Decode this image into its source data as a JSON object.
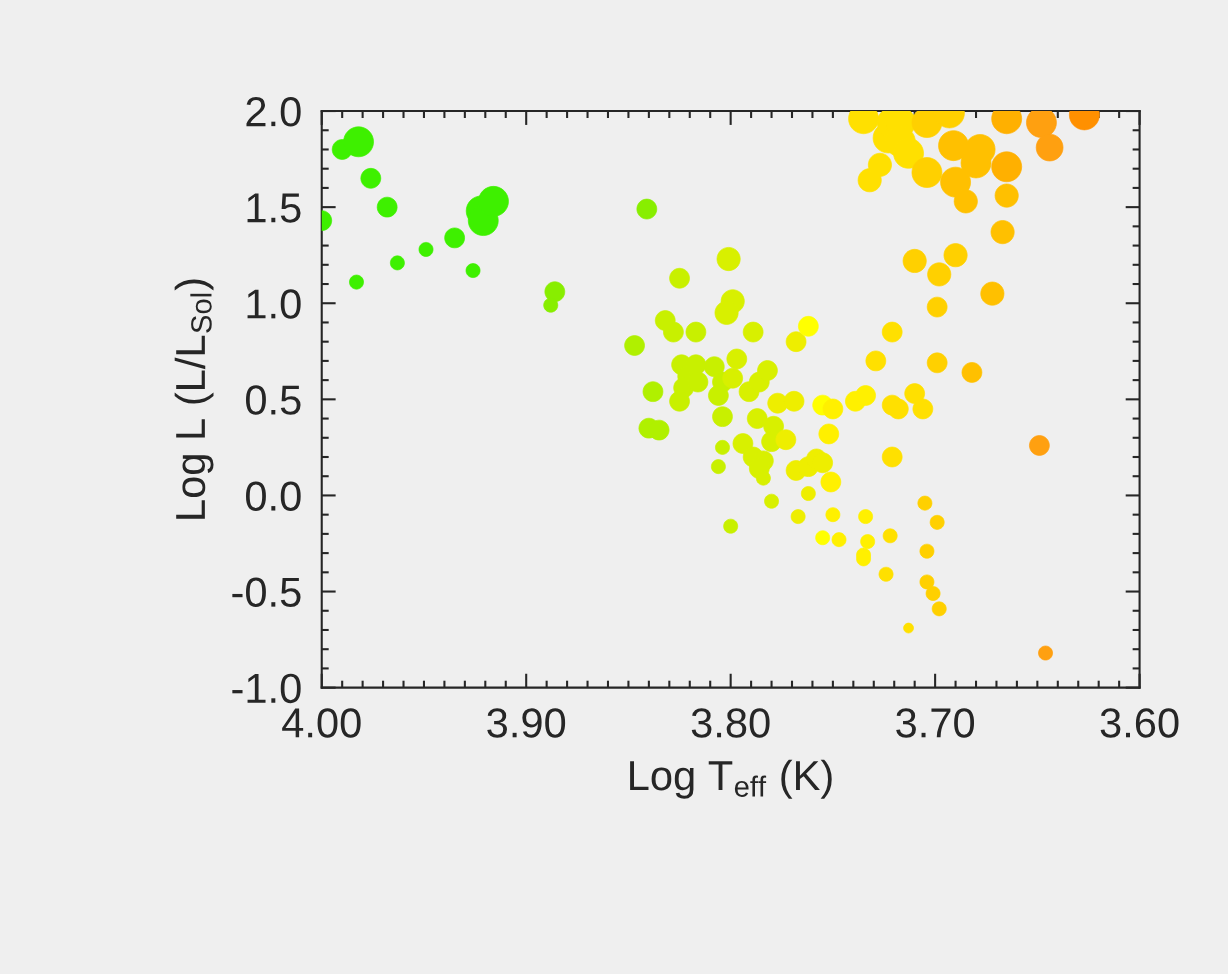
{
  "chart_data": {
    "type": "bubble",
    "xlabel": "Log T$_{eff}$ (K)",
    "ylabel": "Log L (L/L$_{Sol}$)",
    "xlim": [
      4.0,
      3.6
    ],
    "xticks": [
      {
        "value": 4.0,
        "label": "4.00"
      },
      {
        "value": 3.9,
        "label": "3.90"
      },
      {
        "value": 3.8,
        "label": "3.80"
      },
      {
        "value": 3.7,
        "label": "3.70"
      },
      {
        "value": 3.6,
        "label": "3.60"
      }
    ],
    "ylim": [
      -1.0,
      2.0
    ],
    "yticks": [
      {
        "value": -1.0,
        "label": "-1.0"
      },
      {
        "value": -0.5,
        "label": "-0.5"
      },
      {
        "value": 0.0,
        "label": "0.0"
      },
      {
        "value": 0.5,
        "label": "0.5"
      },
      {
        "value": 1.0,
        "label": "1.0"
      },
      {
        "value": 1.5,
        "label": "1.5"
      },
      {
        "value": 2.0,
        "label": "2.0"
      }
    ],
    "grid": false,
    "marker": "circle",
    "series": [
      {
        "color": "#3ef000",
        "x": [
          4.0,
          3.99,
          3.982,
          3.976,
          3.968,
          3.983,
          3.963,
          3.949,
          3.935,
          3.926,
          3.922,
          3.921,
          3.916
        ],
        "values": [
          1.43,
          1.8,
          1.84,
          1.65,
          1.5,
          1.11,
          1.21,
          1.28,
          1.34,
          1.17,
          1.48,
          1.43,
          1.53
        ],
        "sizes": [
          0.44,
          0.44,
          1,
          0.44,
          0.44,
          0.22,
          0.22,
          0.22,
          0.44,
          0.22,
          1,
          1,
          1
        ]
      },
      {
        "color": "#88ee00",
        "x": [
          3.886,
          3.888,
          3.841
        ],
        "values": [
          1.06,
          0.99,
          1.49
        ],
        "sizes": [
          0.44,
          0.22,
          0.44
        ]
      },
      {
        "color": "#b0f000",
        "x": [
          3.847,
          3.84,
          3.835,
          3.838
        ],
        "values": [
          0.78,
          0.35,
          0.34,
          0.54
        ],
        "sizes": [
          0.44,
          0.44,
          0.44,
          0.44
        ]
      },
      {
        "color": "#c8f000",
        "x": [
          3.832,
          3.828,
          3.825,
          3.824,
          3.821,
          3.823,
          3.825,
          3.817,
          3.816,
          3.817,
          3.808,
          3.806,
          3.804,
          3.804,
          3.806,
          3.804,
          3.8
        ],
        "values": [
          0.91,
          0.85,
          1.13,
          0.68,
          0.62,
          0.56,
          0.49,
          0.68,
          0.59,
          0.85,
          0.67,
          0.52,
          0.59,
          0.41,
          0.15,
          0.25,
          -0.16
        ],
        "sizes": [
          0.44,
          0.44,
          0.44,
          0.44,
          0.44,
          0.44,
          0.44,
          0.44,
          0.44,
          0.44,
          0.44,
          0.44,
          0.44,
          0.44,
          0.22,
          0.22,
          0.22
        ]
      },
      {
        "color": "#d8f000",
        "x": [
          3.801,
          3.799,
          3.802,
          3.799,
          3.797,
          3.789,
          3.794,
          3.791,
          3.786,
          3.782,
          3.789,
          3.784,
          3.786,
          3.787,
          3.784,
          3.779,
          3.78,
          3.78
        ],
        "values": [
          1.23,
          1.01,
          0.95,
          0.61,
          0.71,
          0.85,
          0.27,
          0.54,
          0.59,
          0.65,
          0.2,
          0.18,
          0.14,
          0.4,
          0.09,
          0.36,
          0.28,
          -0.03
        ],
        "sizes": [
          0.6,
          0.6,
          0.6,
          0.44,
          0.44,
          0.44,
          0.44,
          0.44,
          0.44,
          0.44,
          0.44,
          0.44,
          0.44,
          0.44,
          0.22,
          0.44,
          0.44,
          0.22
        ]
      },
      {
        "color": "#eeee00",
        "x": [
          3.777,
          3.773,
          3.769,
          3.768,
          3.767,
          3.768,
          3.762,
          3.762,
          3.758,
          3.755
        ],
        "values": [
          0.48,
          0.29,
          0.49,
          0.13,
          -0.11,
          0.8,
          0.15,
          0.01,
          0.19,
          0.17
        ],
        "sizes": [
          0.44,
          0.44,
          0.44,
          0.44,
          0.22,
          0.44,
          0.44,
          0.22,
          0.44,
          0.44
        ]
      },
      {
        "color": "#ffff00",
        "x": [
          3.762,
          3.755,
          3.755
        ],
        "values": [
          0.88,
          0.47,
          -0.22
        ],
        "sizes": [
          0.44,
          0.44,
          0.22
        ]
      },
      {
        "color": "#fff000",
        "x": [
          3.752,
          3.75,
          3.751,
          3.75,
          3.747,
          3.739,
          3.734,
          3.734,
          3.733,
          3.735,
          3.735
        ],
        "values": [
          0.32,
          0.45,
          0.07,
          -0.1,
          -0.23,
          0.49,
          0.52,
          -0.11,
          -0.24,
          -0.31,
          -0.33
        ],
        "sizes": [
          0.44,
          0.44,
          0.44,
          0.22,
          0.22,
          0.44,
          0.44,
          0.22,
          0.22,
          0.22,
          0.22
        ]
      },
      {
        "color": "#ffe000",
        "x": [
          3.729,
          3.721,
          3.721,
          3.718,
          3.721,
          3.722,
          3.724,
          3.713,
          3.71,
          3.706,
          3.735,
          3.732,
          3.727,
          3.723,
          3.721,
          3.717,
          3.717,
          3.713
        ],
        "values": [
          0.7,
          0.85,
          0.47,
          0.45,
          0.2,
          -0.21,
          -0.41,
          -0.69,
          0.53,
          0.45,
          1.96,
          1.64,
          1.72,
          1.86,
          1.94,
          1.94,
          1.84,
          1.78
        ],
        "sizes": [
          0.44,
          0.44,
          0.44,
          0.44,
          0.44,
          0.22,
          0.22,
          0.11,
          0.44,
          0.44,
          1,
          0.6,
          0.6,
          1,
          1,
          1,
          1,
          1
        ]
      },
      {
        "color": "#ffd000",
        "x": [
          3.699,
          3.705,
          3.699,
          3.704,
          3.704,
          3.701,
          3.698,
          3.71,
          3.699,
          3.698,
          3.69,
          3.704,
          3.704,
          3.693
        ],
        "values": [
          0.69,
          -0.04,
          -0.14,
          -0.29,
          -0.45,
          -0.51,
          -0.59,
          1.22,
          0.98,
          1.15,
          1.25,
          1.68,
          1.94,
          1.99
        ],
        "sizes": [
          0.44,
          0.22,
          0.22,
          0.22,
          0.22,
          0.22,
          0.22,
          0.6,
          0.44,
          0.6,
          0.6,
          1,
          1,
          1
        ]
      },
      {
        "color": "#ffc000",
        "x": [
          3.682,
          3.672,
          3.667,
          3.665,
          3.691,
          3.69,
          3.685,
          3.678,
          3.68
        ],
        "values": [
          0.64,
          1.05,
          1.37,
          1.56,
          1.82,
          1.63,
          1.53,
          1.8,
          1.73
        ],
        "sizes": [
          0.44,
          0.6,
          0.6,
          0.6,
          1,
          1,
          0.6,
          1,
          1
        ]
      },
      {
        "color": "#ffb000",
        "x": [
          3.665,
          3.665
        ],
        "values": [
          1.71,
          1.96
        ],
        "sizes": [
          1,
          1
        ]
      },
      {
        "color": "#ffa010",
        "x": [
          3.649,
          3.646,
          3.648,
          3.644
        ],
        "values": [
          0.26,
          -0.82,
          1.94,
          1.81
        ],
        "sizes": [
          0.44,
          0.22,
          1,
          0.8
        ]
      },
      {
        "color": "#ff9000",
        "x": [
          3.627
        ],
        "values": [
          1.98
        ],
        "sizes": [
          1
        ]
      }
    ]
  }
}
